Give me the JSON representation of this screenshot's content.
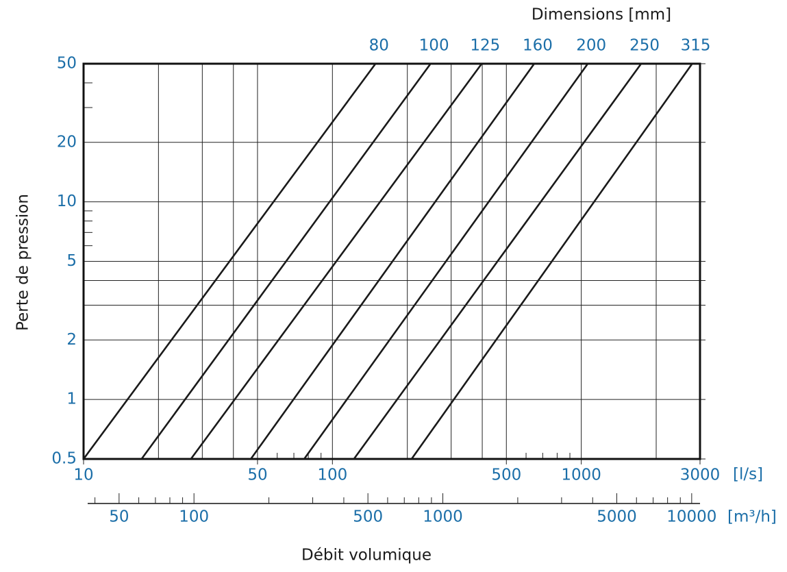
{
  "chart_data": {
    "type": "line",
    "title": "Dimensions [mm]",
    "ylabel": "Perte de pression",
    "xlabel": "Débit volumique",
    "x_unit": "[l/s]",
    "x2_unit": "[m³/h]",
    "xscale": "log",
    "yscale": "log",
    "xlim": [
      10,
      3000
    ],
    "ylim": [
      0.5,
      50
    ],
    "xticks": [
      10,
      50,
      100,
      500,
      1000,
      3000
    ],
    "xgrid": [
      20,
      30,
      40,
      50,
      100,
      200,
      300,
      400,
      500,
      1000,
      2000
    ],
    "xticks_minor": [
      60,
      70,
      80,
      90,
      600,
      700,
      800,
      900
    ],
    "yticks": [
      0.5,
      1,
      2,
      5,
      10,
      20,
      50
    ],
    "ygrid_minor": [
      3,
      4
    ],
    "yticks_minor": [
      6,
      7,
      8,
      9,
      30,
      40
    ],
    "x2lim": [
      36,
      10800
    ],
    "x2ticks": [
      50,
      100,
      500,
      1000,
      5000,
      10000
    ],
    "x2ticks_minor": [
      40,
      60,
      70,
      80,
      90,
      200,
      300,
      400,
      600,
      700,
      800,
      900,
      2000,
      3000,
      4000,
      6000,
      7000,
      8000,
      9000
    ],
    "color": "#1a1a1a",
    "series": [
      {
        "name": "80",
        "x": [
          10,
          149
        ],
        "values": [
          0.5,
          50
        ]
      },
      {
        "name": "100",
        "x": [
          17.1,
          248
        ],
        "values": [
          0.5,
          50
        ]
      },
      {
        "name": "125",
        "x": [
          27,
          398
        ],
        "values": [
          0.5,
          50
        ]
      },
      {
        "name": "160",
        "x": [
          47,
          647
        ],
        "values": [
          0.5,
          50
        ]
      },
      {
        "name": "200",
        "x": [
          77,
          1062
        ],
        "values": [
          0.5,
          50
        ]
      },
      {
        "name": "250",
        "x": [
          122,
          1740
        ],
        "values": [
          0.5,
          50
        ]
      },
      {
        "name": "315",
        "x": [
          208,
          2790
        ],
        "values": [
          0.5,
          50
        ]
      }
    ]
  }
}
